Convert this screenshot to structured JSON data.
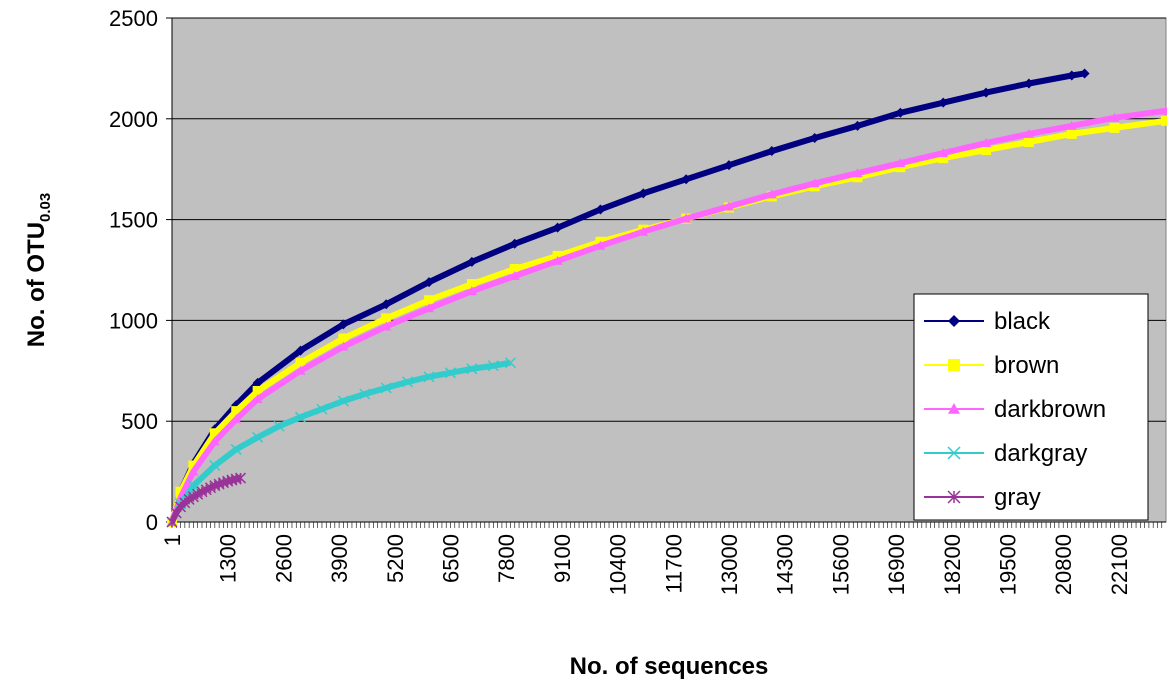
{
  "chart_data": {
    "type": "line",
    "title": "",
    "xlabel": "No. of sequences",
    "ylabel": {
      "main": "No. of OTU",
      "subscript": "0.03"
    },
    "xlim": [
      1,
      23200
    ],
    "ylim": [
      0,
      2500
    ],
    "yticks": [
      0,
      500,
      1000,
      1500,
      2000,
      2500
    ],
    "xtick_labels": [
      "1",
      "1300",
      "2600",
      "3900",
      "5200",
      "6500",
      "7800",
      "9100",
      "10400",
      "11700",
      "13000",
      "14300",
      "15600",
      "16900",
      "18200",
      "19500",
      "20800",
      "22100"
    ],
    "grid": "horizontal",
    "plot_background": "#C0C0C0",
    "legend_position": "right",
    "series": [
      {
        "name": "black",
        "color": "#000080",
        "marker": "diamond",
        "x": [
          1,
          200,
          500,
          1000,
          1500,
          2000,
          3000,
          4000,
          5000,
          6000,
          7000,
          8000,
          9000,
          10000,
          11000,
          12000,
          13000,
          14000,
          15000,
          16000,
          17000,
          18000,
          19000,
          20000,
          21000,
          21300
        ],
        "y": [
          0,
          150,
          290,
          460,
          580,
          690,
          850,
          980,
          1080,
          1190,
          1290,
          1380,
          1460,
          1550,
          1630,
          1700,
          1770,
          1840,
          1905,
          1965,
          2030,
          2080,
          2130,
          2175,
          2215,
          2225
        ]
      },
      {
        "name": "brown",
        "color": "#FFFF00",
        "marker": "square",
        "x": [
          1,
          200,
          500,
          1000,
          1500,
          2000,
          3000,
          4000,
          5000,
          6000,
          7000,
          8000,
          9000,
          10000,
          11000,
          12000,
          13000,
          14000,
          15000,
          16000,
          17000,
          18000,
          19000,
          20000,
          21000,
          22000,
          23200
        ],
        "y": [
          0,
          150,
          280,
          440,
          550,
          650,
          790,
          910,
          1010,
          1100,
          1180,
          1255,
          1320,
          1390,
          1450,
          1505,
          1560,
          1615,
          1665,
          1710,
          1760,
          1805,
          1845,
          1885,
          1925,
          1955,
          1990
        ]
      },
      {
        "name": "darkbrown",
        "color": "#FF66FF",
        "marker": "triangle",
        "x": [
          1,
          200,
          500,
          1000,
          1500,
          2000,
          3000,
          4000,
          5000,
          6000,
          7000,
          8000,
          9000,
          10000,
          11000,
          12000,
          13000,
          14000,
          15000,
          16000,
          17000,
          18000,
          19000,
          20000,
          21000,
          22000,
          23200
        ],
        "y": [
          0,
          120,
          250,
          400,
          510,
          610,
          750,
          870,
          970,
          1060,
          1145,
          1220,
          1295,
          1370,
          1440,
          1505,
          1565,
          1625,
          1680,
          1730,
          1780,
          1830,
          1880,
          1925,
          1965,
          2005,
          2040
        ]
      },
      {
        "name": "darkgray",
        "color": "#33CCCC",
        "marker": "x",
        "x": [
          1,
          200,
          500,
          1000,
          1500,
          2000,
          2500,
          3000,
          3500,
          4000,
          4500,
          5000,
          5500,
          6000,
          6500,
          7000,
          7500,
          7900
        ],
        "y": [
          0,
          90,
          180,
          280,
          360,
          420,
          475,
          520,
          560,
          600,
          635,
          665,
          695,
          720,
          740,
          760,
          775,
          790
        ]
      },
      {
        "name": "gray",
        "color": "#993399",
        "marker": "star",
        "x": [
          1,
          100,
          200,
          300,
          400,
          500,
          600,
          700,
          800,
          900,
          1000,
          1100,
          1200,
          1300,
          1400,
          1500,
          1600
        ],
        "y": [
          0,
          45,
          75,
          95,
          112,
          125,
          138,
          150,
          160,
          170,
          180,
          188,
          195,
          202,
          208,
          213,
          218
        ]
      }
    ]
  }
}
